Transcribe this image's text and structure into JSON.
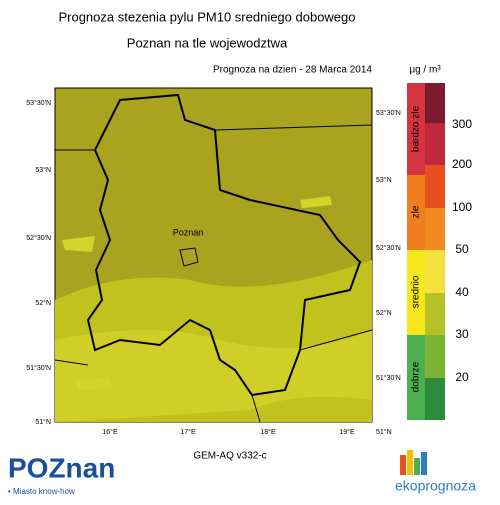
{
  "header": {
    "title_line1": "Prognoza stezenia pylu PM10 sredniego dobowego",
    "title_line2": "Poznan na tle wojewodztwa",
    "forecast_date": "Prognoza na dzien -  28 Marca 2014"
  },
  "map": {
    "lat_labels": [
      "53°30'N",
      "53°N",
      "52°30'N",
      "52°N",
      "51°30'N",
      "51°N"
    ],
    "lon_labels": [
      "16°E",
      "17°E",
      "18°E",
      "19°E"
    ],
    "city_label": "Poznan",
    "model": "GEM-AQ v332-c"
  },
  "legend": {
    "unit": "μg / m³",
    "levels": [
      300,
      200,
      100,
      50,
      40,
      30,
      20
    ],
    "categories": [
      "bardzo zle",
      "zle",
      "srednio",
      "dobrze"
    ]
  },
  "footer": {
    "poznan_logo": "POZnan",
    "poznan_tagline": "• Miasto know-how",
    "eko_logo": "ekoprognoza"
  }
}
